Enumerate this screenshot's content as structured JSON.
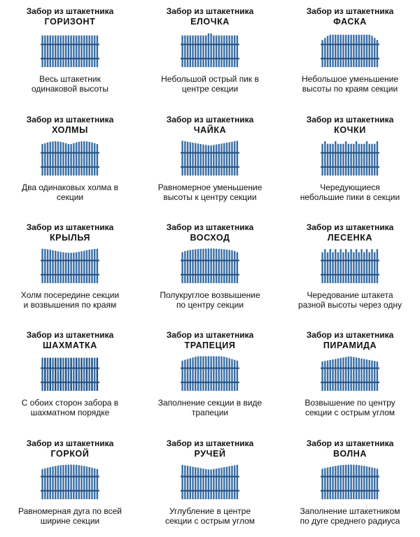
{
  "title_prefix": "Забор из штакетника",
  "colors": {
    "picket": "#3a6fa5",
    "picket_shade": "#1e4e82",
    "rail": "#244f80"
  },
  "items": [
    {
      "name": "ГОРИЗОНТ",
      "desc": "Весь штакетник одинаковой высоты",
      "shape": "flat"
    },
    {
      "name": "ЕЛОЧКА",
      "desc": "Небольшой острый пик в центре секции",
      "shape": "peak"
    },
    {
      "name": "ФАСКА",
      "desc": "Небольшое уменьшение высоты по краям секции",
      "shape": "chamfer"
    },
    {
      "name": "ХОЛМЫ",
      "desc": "Два одинаковых холма в секции",
      "shape": "hills"
    },
    {
      "name": "ЧАЙКА",
      "desc": "Равномерное уменьшение высоты к центру секции",
      "shape": "gull"
    },
    {
      "name": "КОЧКИ",
      "desc": "Чередующиеся небольшие пики в секции",
      "shape": "bumps"
    },
    {
      "name": "КРЫЛЬЯ",
      "desc": "Холм посередине секции и возвышения по краям",
      "shape": "wings"
    },
    {
      "name": "ВОСХОД",
      "desc": "Полукруглое возвышение по центру секции",
      "shape": "sunrise"
    },
    {
      "name": "ЛЕСЕНКА",
      "desc": "Чередование штакета разной высоты через одну",
      "shape": "ladder"
    },
    {
      "name": "ШАХМАТКА",
      "desc": "С обоих сторон забора в шахматном порядке",
      "shape": "checker"
    },
    {
      "name": "ТРАПЕЦИЯ",
      "desc": "Заполнение секции в виде трапеции",
      "shape": "trapezoid"
    },
    {
      "name": "ПИРАМИДА",
      "desc": "Возвышение по центру секции с острым углом",
      "shape": "pyramid"
    },
    {
      "name": "ГОРКОЙ",
      "desc": "Равномерная дуга по всей ширине секции",
      "shape": "arc"
    },
    {
      "name": "РУЧЕЙ",
      "desc": "Углубление в центре секции с острым углом",
      "shape": "stream"
    },
    {
      "name": "ВОЛНА",
      "desc": "Заполнение штакетником по дуге среднего радиуса",
      "shape": "wave"
    }
  ]
}
